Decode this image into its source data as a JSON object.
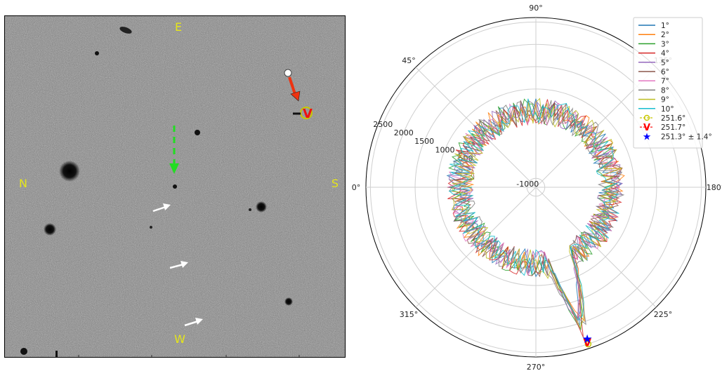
{
  "sky_image": {
    "direction_labels": {
      "east": "E",
      "west": "W",
      "north": "N",
      "south": "S"
    },
    "label_color": "#e6e61a",
    "background_color": "#8a8a8a"
  },
  "chart_data": {
    "type": "polar",
    "radial_ticks": [
      "-1000",
      "500",
      "1000",
      "1500",
      "2000",
      "2500"
    ],
    "radial_tick_values": [
      -1000,
      500,
      1000,
      1500,
      2000,
      2500
    ],
    "r_range": [
      -1200,
      2600
    ],
    "angular_ticks": [
      "0°",
      "45°",
      "90°",
      "135°",
      "180°",
      "225°",
      "270°",
      "315°"
    ],
    "angular_tick_values": [
      0,
      45,
      90,
      135,
      180,
      225,
      270,
      315
    ],
    "angle_direction": "clockwise",
    "zero_location": "left",
    "grid": true,
    "legend": {
      "location": "top-right"
    },
    "series": [
      {
        "name": "1°",
        "color": "#1f77b4"
      },
      {
        "name": "2°",
        "color": "#ff7f0e"
      },
      {
        "name": "3°",
        "color": "#2ca02c"
      },
      {
        "name": "4°",
        "color": "#d62728"
      },
      {
        "name": "5°",
        "color": "#9467bd"
      },
      {
        "name": "6°",
        "color": "#8c564b"
      },
      {
        "name": "7°",
        "color": "#e377c2"
      },
      {
        "name": "8°",
        "color": "#7f7f7f"
      },
      {
        "name": "9°",
        "color": "#bcbd22"
      },
      {
        "name": "10°",
        "color": "#17becf"
      }
    ],
    "series_profile": {
      "baseline_r": 500,
      "spike_angle_deg": 251.5,
      "spike_peak_r": 2420
    },
    "markers": [
      {
        "label": "251.6°",
        "angle": 251.6,
        "r": 2500,
        "symbol": "circle",
        "color": "#c8c800"
      },
      {
        "label": "251.7°",
        "angle": 251.7,
        "r": 2460,
        "symbol": "v",
        "color": "#ff0000"
      },
      {
        "label": "251.3° ± 1.4°",
        "angle": 251.3,
        "r": 2380,
        "symbol": "star",
        "color": "#0000ff"
      }
    ]
  }
}
